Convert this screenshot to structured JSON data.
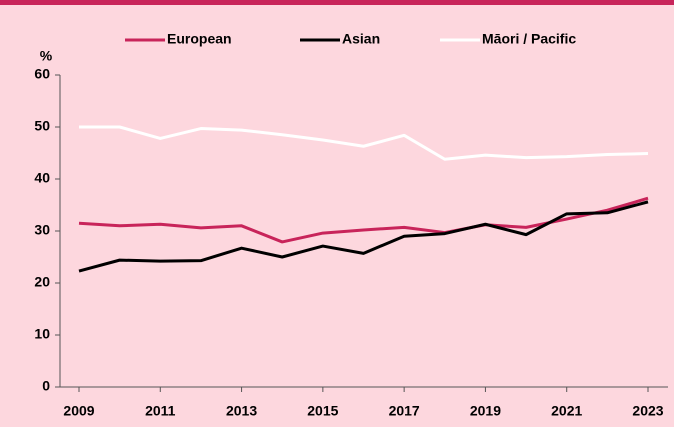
{
  "chart_data": {
    "type": "line",
    "y_label": "%",
    "x": [
      2009,
      2010,
      2011,
      2012,
      2013,
      2014,
      2015,
      2016,
      2017,
      2018,
      2019,
      2020,
      2021,
      2022,
      2023
    ],
    "series": [
      {
        "name": "European",
        "color": "#c8245a",
        "values": [
          31.5,
          31.0,
          31.3,
          30.6,
          31.0,
          27.9,
          29.6,
          30.2,
          30.7,
          29.7,
          31.2,
          30.7,
          32.3,
          34.0,
          36.3
        ]
      },
      {
        "name": "Asian",
        "color": "#000000",
        "values": [
          22.3,
          24.4,
          24.2,
          24.3,
          26.7,
          25.0,
          27.1,
          25.7,
          29.0,
          29.5,
          31.3,
          29.3,
          33.3,
          33.5,
          35.6
        ]
      },
      {
        "name": "Māori / Pacific",
        "color": "#ffffff",
        "values": [
          50.0,
          50.0,
          47.8,
          49.7,
          49.4,
          48.5,
          47.5,
          46.3,
          48.4,
          43.8,
          44.6,
          44.1,
          44.3,
          44.7,
          44.9
        ]
      }
    ],
    "xlim": [
      2009,
      2023
    ],
    "xticks": [
      2009,
      2011,
      2013,
      2015,
      2017,
      2019,
      2021,
      2023
    ],
    "ylim": [
      0,
      60
    ],
    "yticks": [
      0,
      10,
      20,
      30,
      40,
      50,
      60
    ],
    "grid": false,
    "legend": "top"
  }
}
